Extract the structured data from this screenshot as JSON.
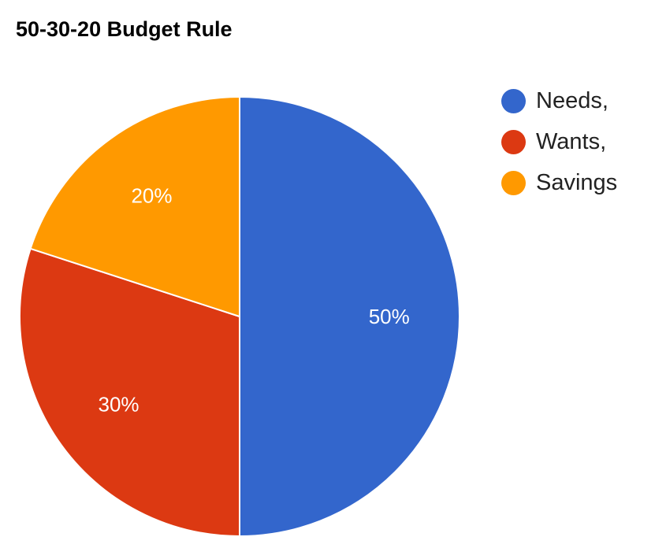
{
  "chart_data": {
    "type": "pie",
    "title": "50-30-20 Budget Rule",
    "legend_position": "right",
    "slices": [
      {
        "label": "Needs,",
        "value": 50,
        "value_label": "50%",
        "color": "#3366cc"
      },
      {
        "label": "Wants,",
        "value": 30,
        "value_label": "30%",
        "color": "#dc3912"
      },
      {
        "label": "Savings",
        "value": 20,
        "value_label": "20%",
        "color": "#ff9900"
      }
    ]
  }
}
